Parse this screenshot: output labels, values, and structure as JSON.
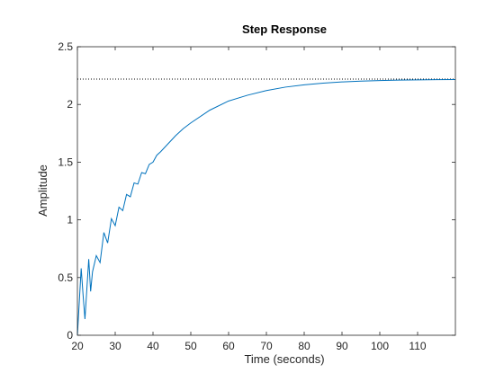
{
  "chart_data": {
    "type": "line",
    "title": "Step Response",
    "xlabel": "Time (seconds)",
    "ylabel": "Amplitude",
    "xlim": [
      20,
      120
    ],
    "ylim": [
      0,
      2.5
    ],
    "xticks": [
      "20",
      "30",
      "40",
      "50",
      "60",
      "70",
      "80",
      "90",
      "100",
      "110"
    ],
    "yticks": [
      "0",
      "0.5",
      "1",
      "1.5",
      "2",
      "2.5"
    ],
    "grid": false,
    "legend": "none",
    "steady_state": 2.22,
    "colors": {
      "response": "#0072BD",
      "steady_state": "#000000",
      "axes": "#262626"
    },
    "series": [
      {
        "x": [
          20,
          21,
          21.5,
          22,
          22.5,
          23,
          23.5,
          24,
          25,
          26,
          27,
          28,
          29,
          30,
          31,
          32,
          33,
          34,
          35,
          36,
          37,
          38,
          39,
          40,
          41,
          42,
          44,
          46,
          48,
          50,
          55,
          60,
          65,
          70,
          75,
          80,
          85,
          90,
          95,
          100,
          105,
          110,
          115,
          120
        ],
        "y": [
          0,
          0.58,
          0.35,
          0.14,
          0.4,
          0.66,
          0.38,
          0.55,
          0.69,
          0.63,
          0.89,
          0.8,
          1.01,
          0.95,
          1.11,
          1.08,
          1.22,
          1.2,
          1.32,
          1.31,
          1.41,
          1.4,
          1.48,
          1.5,
          1.56,
          1.59,
          1.66,
          1.73,
          1.79,
          1.84,
          1.95,
          2.03,
          2.08,
          2.12,
          2.15,
          2.17,
          2.185,
          2.195,
          2.202,
          2.207,
          2.211,
          2.213,
          2.215,
          2.216
        ]
      }
    ]
  }
}
